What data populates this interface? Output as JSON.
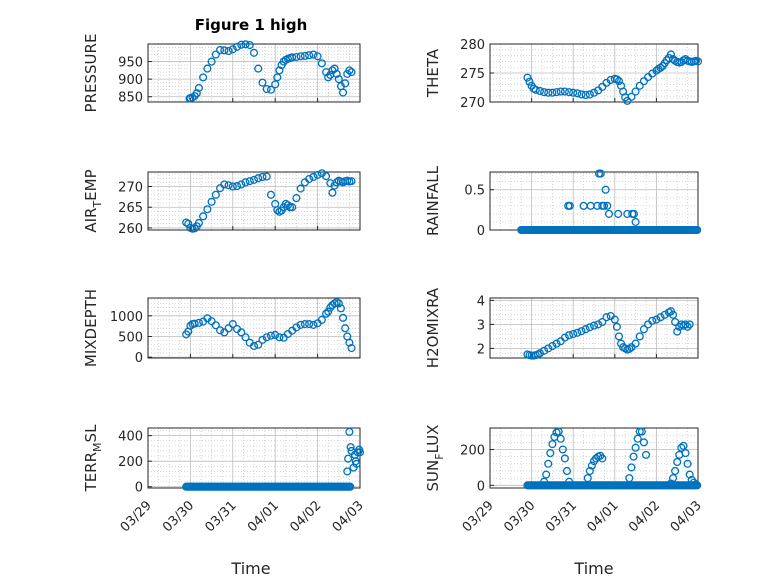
{
  "figure": {
    "title": "Figure 1 high",
    "xlabel": "Time"
  },
  "colors": {
    "marker": "#0072BD",
    "axis": "#262626",
    "grid": "#bcbcbc"
  },
  "chart_data": [
    {
      "id": "pressure",
      "type": "scatter",
      "ylabel": "PRESSURE",
      "title": "Figure 1 high",
      "ylim": [
        835,
        1000
      ],
      "yticks": [
        850,
        900,
        950
      ],
      "grid": true,
      "xlim": [
        "03/29",
        "04/03"
      ],
      "x": [
        0.98,
        1.0,
        1.05,
        1.1,
        1.15,
        1.2,
        1.3,
        1.4,
        1.5,
        1.6,
        1.7,
        1.8,
        1.9,
        2.0,
        2.1,
        2.2,
        2.3,
        2.4,
        2.5,
        2.6,
        2.7,
        2.8,
        2.9,
        3.0,
        3.05,
        3.1,
        3.15,
        3.2,
        3.25,
        3.3,
        3.35,
        3.4,
        3.5,
        3.6,
        3.7,
        3.8,
        3.9,
        4.0,
        4.1,
        4.2,
        4.25,
        4.3,
        4.35,
        4.4,
        4.45,
        4.5,
        4.55,
        4.6,
        4.65,
        4.7,
        4.75,
        4.8
      ],
      "y": [
        845,
        846,
        848,
        852,
        860,
        875,
        905,
        930,
        950,
        970,
        983,
        982,
        980,
        985,
        992,
        998,
        999,
        997,
        975,
        930,
        890,
        872,
        870,
        885,
        905,
        925,
        940,
        950,
        955,
        958,
        960,
        962,
        963,
        965,
        966,
        968,
        970,
        965,
        945,
        920,
        905,
        912,
        925,
        930,
        915,
        900,
        880,
        862,
        888,
        915,
        925,
        920
      ]
    },
    {
      "id": "theta",
      "type": "scatter",
      "ylabel": "THETA",
      "ylim": [
        270,
        280
      ],
      "yticks": [
        270,
        275,
        280
      ],
      "grid": true,
      "xlim": [
        "03/29",
        "04/03"
      ],
      "x": [
        0.9,
        0.95,
        1.0,
        1.05,
        1.1,
        1.2,
        1.3,
        1.4,
        1.5,
        1.6,
        1.7,
        1.8,
        1.9,
        2.0,
        2.1,
        2.2,
        2.3,
        2.4,
        2.5,
        2.6,
        2.7,
        2.8,
        2.9,
        3.0,
        3.05,
        3.1,
        3.15,
        3.2,
        3.25,
        3.3,
        3.4,
        3.5,
        3.6,
        3.7,
        3.8,
        3.9,
        4.0,
        4.05,
        4.1,
        4.15,
        4.2,
        4.25,
        4.3,
        4.35,
        4.4,
        4.45,
        4.5,
        4.55,
        4.6,
        4.65,
        4.7,
        4.75,
        4.8,
        4.85,
        4.9,
        4.95,
        5.0
      ],
      "y": [
        274.2,
        273.5,
        272.8,
        272.3,
        272.1,
        271.9,
        271.7,
        271.6,
        271.6,
        271.7,
        271.8,
        271.8,
        271.7,
        271.6,
        271.5,
        271.3,
        271.2,
        271.3,
        271.6,
        272.0,
        272.6,
        273.3,
        273.8,
        274.0,
        273.9,
        273.6,
        272.8,
        271.8,
        270.8,
        270.2,
        270.9,
        271.8,
        272.8,
        273.6,
        274.3,
        274.9,
        275.4,
        275.7,
        275.9,
        276.2,
        276.7,
        277.2,
        277.6,
        278.2,
        277.4,
        277.1,
        276.9,
        276.8,
        276.9,
        277.2,
        277.4,
        277.1,
        277.0,
        276.9,
        277.0,
        277.1,
        277.0
      ]
    },
    {
      "id": "air_temp",
      "type": "scatter",
      "ylabel": "AIR_TEMP",
      "ylim": [
        259.5,
        273.5
      ],
      "yticks": [
        260,
        265,
        270
      ],
      "grid": true,
      "xlim": [
        "03/29",
        "04/03"
      ],
      "x": [
        0.9,
        0.95,
        1.0,
        1.05,
        1.1,
        1.15,
        1.2,
        1.3,
        1.4,
        1.5,
        1.6,
        1.7,
        1.8,
        1.9,
        2.0,
        2.1,
        2.2,
        2.3,
        2.4,
        2.5,
        2.6,
        2.7,
        2.8,
        2.9,
        3.0,
        3.05,
        3.1,
        3.15,
        3.2,
        3.25,
        3.3,
        3.35,
        3.4,
        3.5,
        3.6,
        3.7,
        3.8,
        3.9,
        4.0,
        4.1,
        4.2,
        4.3,
        4.35,
        4.4,
        4.45,
        4.5,
        4.55,
        4.6,
        4.65,
        4.7,
        4.75,
        4.8
      ],
      "y": [
        261.3,
        261.0,
        260.0,
        259.8,
        259.9,
        260.4,
        261.2,
        262.8,
        264.5,
        266.3,
        268.0,
        269.6,
        270.5,
        270.3,
        270.0,
        270.1,
        270.5,
        271.0,
        271.3,
        271.6,
        272.0,
        272.3,
        272.4,
        268.0,
        265.8,
        264.3,
        263.9,
        264.2,
        265.0,
        265.8,
        265.5,
        265.0,
        265.0,
        267.2,
        269.5,
        271.0,
        271.8,
        272.3,
        272.8,
        273.2,
        272.5,
        270.8,
        268.5,
        270.2,
        271.0,
        271.4,
        271.2,
        271.0,
        271.3,
        271.4,
        271.2,
        271.3
      ]
    },
    {
      "id": "rainfall",
      "type": "scatter",
      "ylabel": "RAINFALL",
      "ylim": [
        0,
        0.72
      ],
      "yticks": [
        0,
        0.5
      ],
      "grid": true,
      "xlim": [
        "03/29",
        "04/03"
      ],
      "zero_span": [
        0.75,
        5.0
      ],
      "x": [
        1.88,
        1.92,
        2.25,
        2.42,
        2.58,
        2.62,
        2.66,
        2.7,
        2.74,
        2.78,
        2.82,
        2.86,
        3.08,
        3.3,
        3.42,
        3.46,
        3.5
      ],
      "y": [
        0.3,
        0.3,
        0.3,
        0.3,
        0.3,
        0.7,
        0.7,
        0.3,
        0.3,
        0.5,
        0.3,
        0.2,
        0.2,
        0.2,
        0.2,
        0.2,
        0.1
      ]
    },
    {
      "id": "mixdepth",
      "type": "scatter",
      "ylabel": "MIXDEPTH",
      "ylim": [
        -20,
        1430
      ],
      "yticks": [
        0,
        500,
        1000
      ],
      "grid": true,
      "xlim": [
        "03/29",
        "04/03"
      ],
      "x": [
        0.9,
        0.95,
        1.0,
        1.05,
        1.1,
        1.2,
        1.3,
        1.4,
        1.5,
        1.6,
        1.7,
        1.8,
        1.9,
        2.0,
        2.1,
        2.2,
        2.3,
        2.4,
        2.5,
        2.6,
        2.7,
        2.8,
        2.9,
        3.0,
        3.1,
        3.2,
        3.3,
        3.4,
        3.5,
        3.6,
        3.7,
        3.8,
        3.9,
        4.0,
        4.1,
        4.2,
        4.25,
        4.3,
        4.35,
        4.4,
        4.45,
        4.5,
        4.55,
        4.6,
        4.65,
        4.7,
        4.75,
        4.8
      ],
      "y": [
        550,
        620,
        760,
        800,
        810,
        830,
        860,
        940,
        870,
        770,
        650,
        600,
        700,
        800,
        680,
        600,
        480,
        350,
        270,
        300,
        420,
        480,
        520,
        540,
        480,
        470,
        560,
        640,
        720,
        780,
        800,
        800,
        780,
        820,
        900,
        1050,
        1100,
        1200,
        1260,
        1300,
        1330,
        1300,
        1180,
        950,
        700,
        500,
        350,
        220
      ]
    },
    {
      "id": "h2omixra",
      "type": "scatter",
      "ylabel": "H2OMIXRA",
      "ylim": [
        1.6,
        4.1
      ],
      "yticks": [
        2,
        3,
        4
      ],
      "grid": true,
      "xlim": [
        "03/29",
        "04/03"
      ],
      "x": [
        0.9,
        0.95,
        1.0,
        1.05,
        1.1,
        1.15,
        1.2,
        1.3,
        1.4,
        1.5,
        1.6,
        1.7,
        1.8,
        1.9,
        2.0,
        2.1,
        2.2,
        2.3,
        2.4,
        2.5,
        2.6,
        2.7,
        2.8,
        2.9,
        3.0,
        3.05,
        3.1,
        3.15,
        3.2,
        3.25,
        3.3,
        3.35,
        3.4,
        3.5,
        3.6,
        3.7,
        3.8,
        3.9,
        4.0,
        4.1,
        4.2,
        4.3,
        4.35,
        4.4,
        4.45,
        4.5,
        4.55,
        4.6,
        4.65,
        4.7,
        4.75,
        4.8
      ],
      "y": [
        1.75,
        1.72,
        1.7,
        1.7,
        1.72,
        1.75,
        1.8,
        1.9,
        2.0,
        2.1,
        2.2,
        2.3,
        2.45,
        2.55,
        2.6,
        2.65,
        2.72,
        2.8,
        2.88,
        2.95,
        3.0,
        3.1,
        3.3,
        3.35,
        3.2,
        2.9,
        2.5,
        2.2,
        2.05,
        2.0,
        1.95,
        1.98,
        2.05,
        2.2,
        2.5,
        2.8,
        3.0,
        3.15,
        3.2,
        3.3,
        3.4,
        3.5,
        3.55,
        3.4,
        3.1,
        2.7,
        2.9,
        3.0,
        2.95,
        3.0,
        2.9,
        3.0
      ]
    },
    {
      "id": "terr_msl",
      "type": "scatter",
      "ylabel": "TERR_MSL",
      "ylim": [
        -10,
        460
      ],
      "yticks": [
        0,
        200,
        400
      ],
      "grid": true,
      "xlim": [
        "03/29",
        "04/03"
      ],
      "zero_span": [
        0.9,
        4.78
      ],
      "x": [
        4.7,
        4.72,
        4.75,
        4.78,
        4.8,
        4.85,
        4.88,
        4.9,
        4.92,
        4.95,
        4.98,
        5.0
      ],
      "y": [
        120,
        220,
        430,
        310,
        280,
        150,
        250,
        200,
        180,
        270,
        290,
        270
      ]
    },
    {
      "id": "sun_flux",
      "type": "scatter",
      "ylabel": "SUN_FLUX",
      "ylim": [
        -15,
        320
      ],
      "yticks": [
        0,
        200
      ],
      "grid": true,
      "xlim": [
        "03/29",
        "04/03"
      ],
      "zero_span": [
        0.9,
        5.0
      ],
      "x": [
        1.3,
        1.35,
        1.4,
        1.45,
        1.5,
        1.55,
        1.6,
        1.65,
        1.7,
        1.75,
        1.8,
        1.85,
        1.9,
        2.35,
        2.4,
        2.45,
        2.5,
        2.55,
        2.6,
        2.65,
        2.7,
        3.35,
        3.4,
        3.45,
        3.5,
        3.55,
        3.6,
        3.65,
        3.7,
        3.75,
        4.35,
        4.4,
        4.45,
        4.5,
        4.55,
        4.6,
        4.65,
        4.7,
        4.75,
        4.8,
        4.85,
        4.9,
        4.95
      ],
      "y": [
        20,
        60,
        120,
        180,
        230,
        270,
        295,
        300,
        260,
        200,
        150,
        80,
        20,
        40,
        80,
        110,
        135,
        150,
        160,
        165,
        150,
        40,
        100,
        160,
        210,
        260,
        300,
        300,
        240,
        170,
        10,
        40,
        80,
        130,
        170,
        210,
        220,
        180,
        120,
        60,
        30,
        15,
        5
      ]
    }
  ],
  "panel_labels": {
    "pressure": {
      "main": "PRESSURE",
      "sub": ""
    },
    "theta": {
      "main": "THETA",
      "sub": ""
    },
    "air_temp": {
      "pre": "AIR",
      "sub": "T",
      "post": "EMP"
    },
    "rainfall": {
      "main": "RAINFALL",
      "sub": ""
    },
    "mixdepth": {
      "main": "MIXDEPTH",
      "sub": ""
    },
    "h2omixra": {
      "main": "H2OMIXRA",
      "sub": ""
    },
    "terr_msl": {
      "pre": "TERR",
      "sub": "M",
      "post": "SL"
    },
    "sun_flux": {
      "pre": "SUN",
      "sub": "F",
      "post": "LUX"
    }
  },
  "xticks": [
    "03/29",
    "03/30",
    "03/31",
    "04/01",
    "04/02",
    "04/03"
  ]
}
